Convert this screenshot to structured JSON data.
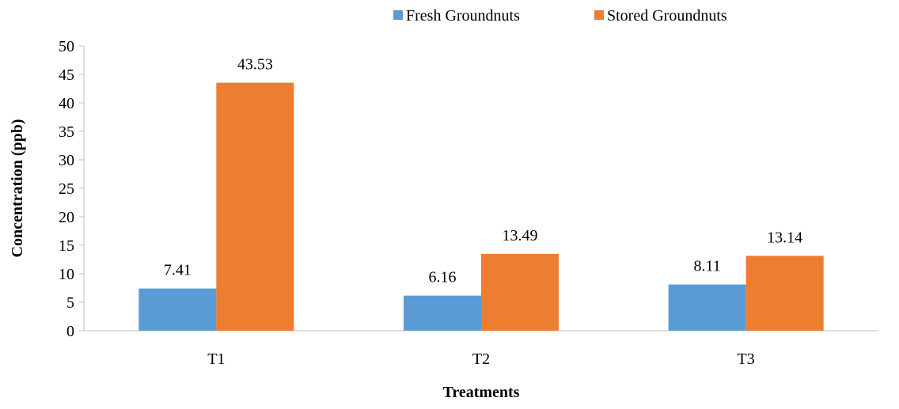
{
  "chart_data": {
    "type": "bar",
    "title": "",
    "xlabel": "Treatments",
    "ylabel": "Concentration (ppb)",
    "categories": [
      "T1",
      "T2",
      "T3"
    ],
    "series": [
      {
        "name": "Fresh Groundnuts",
        "values": [
          7.41,
          6.16,
          8.11
        ],
        "labels": [
          "7.41",
          "6.16",
          "8.11"
        ],
        "color": "#5B9BD5"
      },
      {
        "name": "Stored Groundnuts",
        "values": [
          43.53,
          13.49,
          13.14
        ],
        "labels": [
          "43.53",
          "13.49",
          "13.14"
        ],
        "color": "#ED7D31"
      }
    ],
    "ylim": [
      0,
      50
    ],
    "yticks": [
      0,
      5,
      10,
      15,
      20,
      25,
      30,
      35,
      40,
      45,
      50
    ],
    "grid": false,
    "legend_position": "top-right"
  }
}
